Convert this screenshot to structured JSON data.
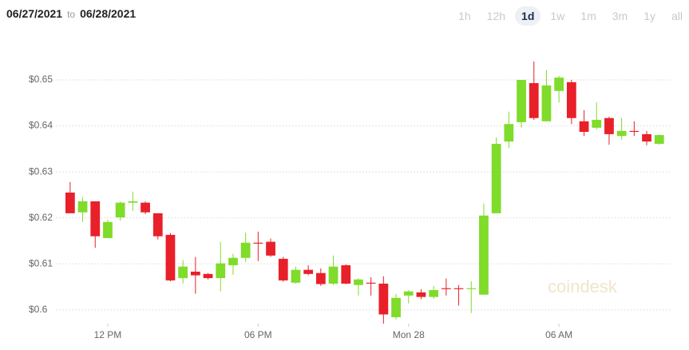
{
  "controls": {
    "start": "06/27/2021",
    "to": "to",
    "end": "06/28/2021",
    "periods": [
      "1h",
      "12h",
      "1d",
      "1w",
      "1m",
      "3m",
      "1y",
      "all"
    ],
    "active_period": 2,
    "watermark": "coindesk"
  },
  "chart_data": {
    "type": "candlestick",
    "grid": true,
    "up_color": "#7fdc2a",
    "down_color": "#e8202a",
    "xlim": [
      10.25,
      34.9
    ],
    "ylim": [
      0.597,
      0.6566
    ],
    "xticks": [
      {
        "value": 12,
        "label": "12 PM"
      },
      {
        "value": 18,
        "label": "06 PM"
      },
      {
        "value": 24,
        "label": "Mon 28"
      },
      {
        "value": 30,
        "label": "06 AM"
      }
    ],
    "yticks": [
      {
        "value": 0.6,
        "label": "$0.6"
      },
      {
        "value": 0.61,
        "label": "$0.61"
      },
      {
        "value": 0.62,
        "label": "$0.62"
      },
      {
        "value": 0.63,
        "label": "$0.63"
      },
      {
        "value": 0.64,
        "label": "$0.64"
      },
      {
        "value": 0.65,
        "label": "$0.65"
      }
    ],
    "x": [
      10.5,
      11,
      11.5,
      12,
      12.5,
      13,
      13.5,
      14,
      14.5,
      15,
      15.5,
      16,
      16.5,
      17,
      17.5,
      18,
      18.5,
      19,
      19.5,
      20,
      20.5,
      21,
      21.5,
      22,
      22.5,
      23,
      23.5,
      24,
      24.5,
      25,
      25.5,
      26,
      26.5,
      27,
      27.5,
      28,
      28.5,
      29,
      29.5,
      30,
      30.5,
      31,
      31.5,
      32,
      32.5,
      33,
      33.5,
      34
    ],
    "open": [
      0.6255,
      0.6212,
      0.6236,
      0.6156,
      0.6201,
      0.6233,
      0.6233,
      0.621,
      0.6163,
      0.6069,
      0.6083,
      0.6078,
      0.6069,
      0.6097,
      0.6113,
      0.6146,
      0.6148,
      0.6111,
      0.6059,
      0.6087,
      0.608,
      0.6057,
      0.6097,
      0.6054,
      0.6059,
      0.6057,
      0.5984,
      0.6031,
      0.6038,
      0.6028,
      0.6047,
      0.6047,
      0.6045,
      0.6033,
      0.621,
      0.6366,
      0.6408,
      0.6493,
      0.641,
      0.6476,
      0.6495,
      0.641,
      0.6396,
      0.6417,
      0.6378,
      0.6389,
      0.6382,
      0.6361
    ],
    "high": [
      0.6278,
      0.6245,
      0.6236,
      0.6196,
      0.6236,
      0.6257,
      0.6236,
      0.621,
      0.6167,
      0.6108,
      0.6115,
      0.608,
      0.6148,
      0.6122,
      0.6168,
      0.617,
      0.6155,
      0.6115,
      0.6094,
      0.6097,
      0.609,
      0.6118,
      0.6099,
      0.6069,
      0.6071,
      0.6073,
      0.6035,
      0.6043,
      0.6045,
      0.6052,
      0.6068,
      0.6054,
      0.6062,
      0.6231,
      0.6375,
      0.6431,
      0.65,
      0.654,
      0.6521,
      0.6509,
      0.65,
      0.6434,
      0.6451,
      0.642,
      0.6417,
      0.641,
      0.6389,
      0.6382
    ],
    "low": [
      0.621,
      0.6191,
      0.6135,
      0.6156,
      0.6194,
      0.6215,
      0.6208,
      0.6153,
      0.6062,
      0.6057,
      0.6035,
      0.6066,
      0.604,
      0.6076,
      0.6104,
      0.6106,
      0.6115,
      0.6061,
      0.6057,
      0.6075,
      0.6052,
      0.6054,
      0.6056,
      0.6031,
      0.6031,
      0.597,
      0.5979,
      0.6014,
      0.6023,
      0.6024,
      0.6031,
      0.6009,
      0.5993,
      0.6033,
      0.621,
      0.6352,
      0.6396,
      0.6413,
      0.641,
      0.6451,
      0.6404,
      0.6378,
      0.6392,
      0.6359,
      0.637,
      0.6378,
      0.6358,
      0.6359
    ],
    "close": [
      0.621,
      0.6236,
      0.616,
      0.6191,
      0.6233,
      0.6236,
      0.6212,
      0.616,
      0.6064,
      0.6094,
      0.6075,
      0.6069,
      0.6101,
      0.6113,
      0.6146,
      0.6144,
      0.6118,
      0.6064,
      0.6087,
      0.6078,
      0.6056,
      0.6094,
      0.6057,
      0.6066,
      0.6057,
      0.599,
      0.6026,
      0.604,
      0.6028,
      0.6043,
      0.6045,
      0.6045,
      0.6047,
      0.6205,
      0.6361,
      0.6404,
      0.65,
      0.6417,
      0.6488,
      0.6505,
      0.6417,
      0.6387,
      0.6413,
      0.6382,
      0.6389,
      0.6387,
      0.6366,
      0.638
    ]
  }
}
